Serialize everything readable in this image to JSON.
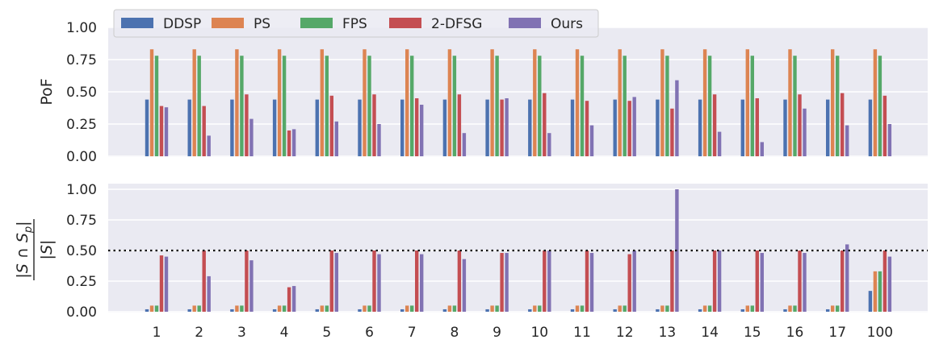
{
  "chart_data": [
    {
      "type": "bar",
      "ylabel": "PoF",
      "ylim": [
        0,
        1.0
      ],
      "yticks": [
        "0.00",
        "0.25",
        "0.50",
        "0.75",
        "1.00"
      ],
      "grid": true,
      "categories": [
        "1",
        "2",
        "3",
        "4",
        "5",
        "6",
        "7",
        "8",
        "9",
        "10",
        "11",
        "12",
        "13",
        "14",
        "15",
        "16",
        "17",
        "100"
      ],
      "series": [
        {
          "name": "DDSP",
          "color": "#4c72b0",
          "values": [
            0.44,
            0.44,
            0.44,
            0.44,
            0.44,
            0.44,
            0.44,
            0.44,
            0.44,
            0.44,
            0.44,
            0.44,
            0.44,
            0.44,
            0.44,
            0.44,
            0.44,
            0.44
          ]
        },
        {
          "name": "PS",
          "color": "#dd8452",
          "values": [
            0.83,
            0.83,
            0.83,
            0.83,
            0.83,
            0.83,
            0.83,
            0.83,
            0.83,
            0.83,
            0.83,
            0.83,
            0.83,
            0.83,
            0.83,
            0.83,
            0.83,
            0.83
          ]
        },
        {
          "name": "FPS",
          "color": "#55a868",
          "values": [
            0.78,
            0.78,
            0.78,
            0.78,
            0.78,
            0.78,
            0.78,
            0.78,
            0.78,
            0.78,
            0.78,
            0.78,
            0.78,
            0.78,
            0.78,
            0.78,
            0.78,
            0.78
          ]
        },
        {
          "name": "2-DFSG",
          "color": "#c44e52",
          "values": [
            0.39,
            0.39,
            0.48,
            0.2,
            0.47,
            0.48,
            0.45,
            0.48,
            0.44,
            0.49,
            0.43,
            0.43,
            0.37,
            0.48,
            0.45,
            0.48,
            0.49,
            0.47
          ]
        },
        {
          "name": "Ours",
          "color": "#8172b3",
          "values": [
            0.38,
            0.16,
            0.29,
            0.21,
            0.27,
            0.25,
            0.4,
            0.18,
            0.45,
            0.18,
            0.24,
            0.46,
            0.59,
            0.19,
            0.11,
            0.37,
            0.24,
            0.25
          ]
        }
      ]
    },
    {
      "type": "bar",
      "ylabel_parts": {
        "num": "|S ∩ S",
        "sub": "p",
        "num_end": "|",
        "den": "|S|"
      },
      "ylim": [
        0,
        1.0
      ],
      "yticks": [
        "0.00",
        "0.25",
        "0.50",
        "0.75",
        "1.00"
      ],
      "grid": true,
      "reference_line": 0.5,
      "categories": [
        "1",
        "2",
        "3",
        "4",
        "5",
        "6",
        "7",
        "8",
        "9",
        "10",
        "11",
        "12",
        "13",
        "14",
        "15",
        "16",
        "17",
        "100"
      ],
      "series": [
        {
          "name": "DDSP",
          "color": "#4c72b0",
          "values": [
            0.02,
            0.02,
            0.02,
            0.02,
            0.02,
            0.02,
            0.02,
            0.02,
            0.02,
            0.02,
            0.02,
            0.02,
            0.02,
            0.02,
            0.02,
            0.02,
            0.02,
            0.17
          ]
        },
        {
          "name": "PS",
          "color": "#dd8452",
          "values": [
            0.05,
            0.05,
            0.05,
            0.05,
            0.05,
            0.05,
            0.05,
            0.05,
            0.05,
            0.05,
            0.05,
            0.05,
            0.05,
            0.05,
            0.05,
            0.05,
            0.05,
            0.33
          ]
        },
        {
          "name": "FPS",
          "color": "#55a868",
          "values": [
            0.05,
            0.05,
            0.05,
            0.05,
            0.05,
            0.05,
            0.05,
            0.05,
            0.05,
            0.05,
            0.05,
            0.05,
            0.05,
            0.05,
            0.05,
            0.05,
            0.05,
            0.33
          ]
        },
        {
          "name": "2-DFSG",
          "color": "#c44e52",
          "values": [
            0.46,
            0.5,
            0.5,
            0.2,
            0.5,
            0.5,
            0.5,
            0.5,
            0.48,
            0.5,
            0.5,
            0.47,
            0.5,
            0.5,
            0.5,
            0.5,
            0.5,
            0.5
          ]
        },
        {
          "name": "Ours",
          "color": "#8172b3",
          "values": [
            0.45,
            0.29,
            0.42,
            0.21,
            0.48,
            0.47,
            0.47,
            0.43,
            0.48,
            0.5,
            0.48,
            0.5,
            1.0,
            0.5,
            0.48,
            0.48,
            0.55,
            0.45
          ]
        }
      ]
    }
  ],
  "legend": {
    "placement": "top-left",
    "entries": [
      "DDSP",
      "PS",
      "FPS",
      "2-DFSG",
      "Ours"
    ]
  }
}
